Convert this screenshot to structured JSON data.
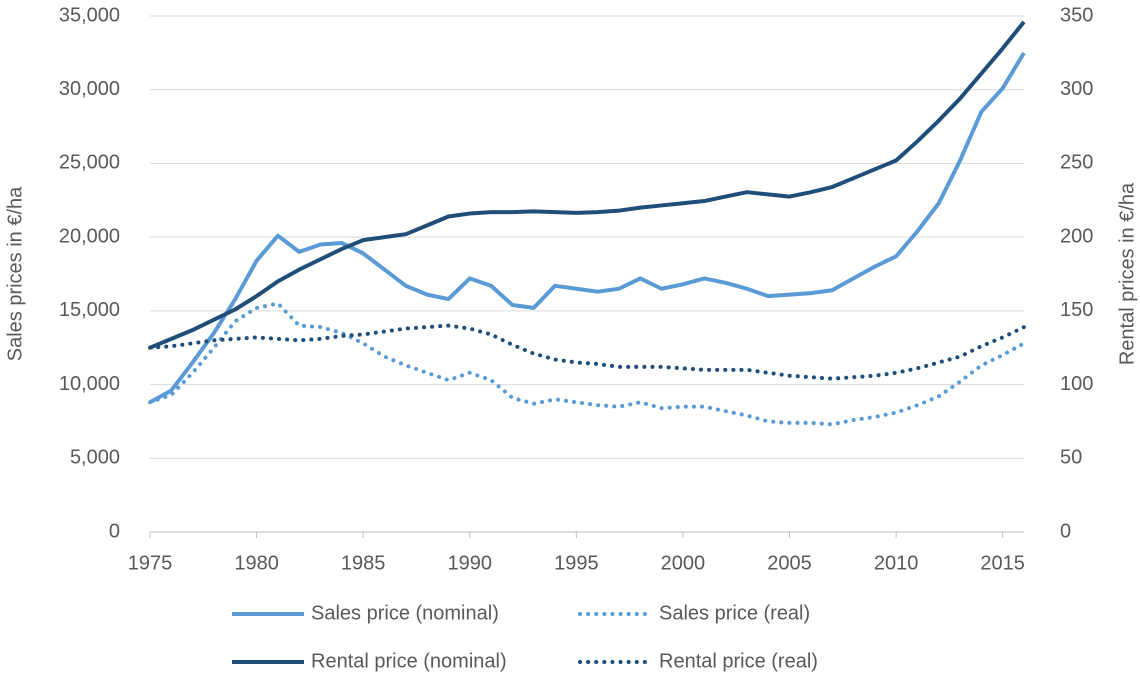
{
  "chart_data": {
    "type": "line",
    "y_label": "Sales prices in €/ha",
    "y2_label": "Rental prices in €/ha",
    "x": [
      1975,
      1976,
      1977,
      1978,
      1979,
      1980,
      1981,
      1982,
      1983,
      1984,
      1985,
      1986,
      1987,
      1988,
      1989,
      1990,
      1991,
      1992,
      1993,
      1994,
      1995,
      1996,
      1997,
      1998,
      1999,
      2000,
      2001,
      2002,
      2003,
      2004,
      2005,
      2006,
      2007,
      2008,
      2009,
      2010,
      2011,
      2012,
      2013,
      2014,
      2015,
      2016
    ],
    "series": [
      {
        "name": "Sales price (nominal)",
        "color": "#5b9bd5",
        "style": "solid",
        "axis": "y",
        "values": [
          8800,
          9600,
          11500,
          13500,
          15800,
          18400,
          20100,
          19000,
          19500,
          19600,
          18900,
          17800,
          16700,
          16100,
          15800,
          17200,
          16700,
          15400,
          15200,
          16700,
          16500,
          16300,
          16500,
          17200,
          16500,
          16800,
          17200,
          16900,
          16500,
          16000,
          16100,
          16200,
          16400,
          17200,
          18000,
          18700,
          20400,
          22300,
          25200,
          28500,
          30100,
          32500
        ]
      },
      {
        "name": "Sales price (real)",
        "color": "#5b9bd5",
        "style": "dotted",
        "axis": "y",
        "values": [
          8800,
          9300,
          10800,
          12500,
          14300,
          15200,
          15500,
          14000,
          13900,
          13500,
          12800,
          11900,
          11300,
          10800,
          10300,
          10800,
          10300,
          9100,
          8700,
          9000,
          8800,
          8600,
          8500,
          8800,
          8400,
          8500,
          8500,
          8200,
          7900,
          7500,
          7400,
          7400,
          7300,
          7600,
          7800,
          8100,
          8600,
          9200,
          10200,
          11300,
          12000,
          12800
        ]
      },
      {
        "name": "Rental price (nominal)",
        "color": "#1f4e79",
        "style": "solid",
        "axis": "y2",
        "values": [
          125,
          131,
          137,
          144,
          151,
          160,
          170,
          178,
          185,
          192,
          198,
          200,
          202,
          208,
          214,
          216,
          217,
          217,
          217.5,
          217,
          216.5,
          217,
          218,
          220,
          221.5,
          223,
          224.5,
          227.5,
          230.5,
          229,
          227.5,
          230.5,
          234,
          240,
          246,
          252,
          265,
          279,
          294,
          311,
          328,
          346
        ]
      },
      {
        "name": "Rental price (real)",
        "color": "#1f4e79",
        "style": "dotted",
        "axis": "y2",
        "values": [
          125,
          126,
          128,
          130,
          131,
          132,
          131,
          130,
          131,
          133,
          134,
          136,
          138,
          139,
          140,
          138,
          134,
          127,
          121,
          117,
          115,
          114,
          112,
          112,
          112,
          111,
          110,
          110,
          110,
          108,
          106,
          105,
          104,
          105,
          106,
          108,
          111,
          115,
          119,
          126,
          132,
          139
        ]
      }
    ],
    "xlim": [
      1975,
      2016
    ],
    "xticks": [
      1975,
      1980,
      1985,
      1990,
      1995,
      2000,
      2005,
      2010,
      2015
    ],
    "ylim": [
      0,
      35000
    ],
    "yticks": [
      0,
      {
        "value": 5000,
        "label": "5,000"
      },
      {
        "value": 10000,
        "label": "10,000"
      },
      {
        "value": 15000,
        "label": "15,000"
      },
      {
        "value": 20000,
        "label": "20,000"
      },
      {
        "value": 25000,
        "label": "25,000"
      },
      {
        "value": 30000,
        "label": "30,000"
      },
      {
        "value": 35000,
        "label": "35,000"
      }
    ],
    "y2lim": [
      0,
      350
    ],
    "y2ticks": [
      0,
      50,
      100,
      150,
      200,
      250,
      300,
      350
    ],
    "grid": true,
    "legend": "bottom"
  }
}
